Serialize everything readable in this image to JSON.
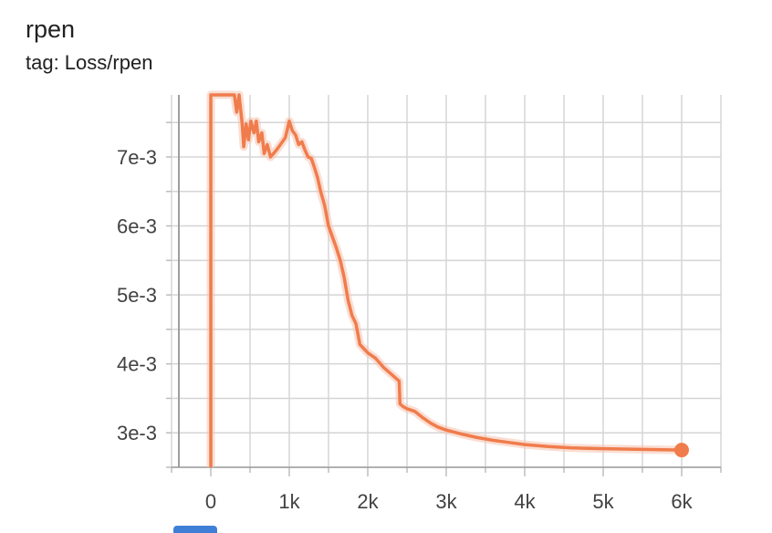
{
  "header": {
    "title": "rpen",
    "tag": "tag: Loss/rpen"
  },
  "chart_data": {
    "type": "line",
    "title": "rpen",
    "subtitle": "tag: Loss/rpen",
    "xlabel": "",
    "ylabel": "",
    "xlim": [
      -500,
      6500
    ],
    "ylim": [
      0.0025,
      0.0079
    ],
    "grid": true,
    "x_ticks": [
      0,
      1000,
      2000,
      3000,
      4000,
      5000,
      6000
    ],
    "x_tick_labels": [
      "0",
      "1k",
      "2k",
      "3k",
      "4k",
      "5k",
      "6k"
    ],
    "y_ticks": [
      0.003,
      0.004,
      0.005,
      0.006,
      0.007
    ],
    "y_tick_labels": [
      "3e-3",
      "4e-3",
      "5e-3",
      "6e-3",
      "7e-3"
    ],
    "colors": {
      "line": "#f07c4c",
      "raw": "#f5c3ae",
      "grid": "#d5d5d5",
      "axis": "#9e9e9e"
    },
    "series": [
      {
        "values_x": [
          0,
          0,
          300,
          330,
          360,
          400,
          420,
          450,
          480,
          510,
          550,
          580,
          610,
          650,
          680,
          720,
          760,
          800,
          850,
          900,
          950,
          1000,
          1040,
          1080,
          1120,
          1160,
          1200,
          1240,
          1280,
          1320,
          1360,
          1400,
          1450,
          1500,
          1550,
          1600,
          1650,
          1700,
          1750,
          1800,
          1850,
          1900,
          1950,
          2000,
          2100,
          2200,
          2300,
          2400,
          2410,
          2450,
          2500,
          2600,
          2700,
          2800,
          2900,
          3000,
          3200,
          3400,
          3600,
          3800,
          4000,
          4300,
          4600,
          5000,
          5500,
          6000
        ],
        "values_y": [
          0.0025,
          0.0079,
          0.0079,
          0.00765,
          0.0079,
          0.00748,
          0.00715,
          0.00748,
          0.00725,
          0.00752,
          0.00735,
          0.00752,
          0.00722,
          0.00735,
          0.00705,
          0.00718,
          0.007,
          0.00705,
          0.00712,
          0.0072,
          0.00728,
          0.00752,
          0.00738,
          0.00732,
          0.00718,
          0.00722,
          0.0071,
          0.007,
          0.00698,
          0.00685,
          0.0067,
          0.0065,
          0.0063,
          0.006,
          0.00584,
          0.00568,
          0.0055,
          0.00525,
          0.00492,
          0.0047,
          0.00458,
          0.00428,
          0.00422,
          0.00416,
          0.00408,
          0.00395,
          0.00385,
          0.00375,
          0.00342,
          0.00338,
          0.00335,
          0.00331,
          0.00322,
          0.00314,
          0.00308,
          0.00304,
          0.00298,
          0.00293,
          0.00289,
          0.00286,
          0.00283,
          0.0028,
          0.00278,
          0.00277,
          0.00276,
          0.00275
        ]
      }
    ]
  }
}
